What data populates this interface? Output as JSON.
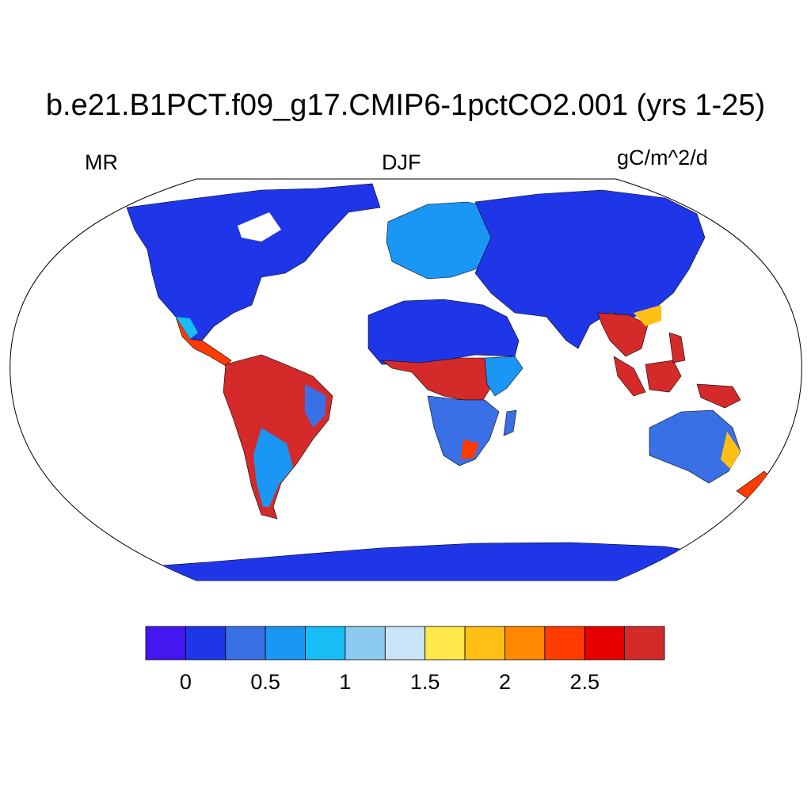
{
  "title": "b.e21.B1PCT.f09_g17.CMIP6-1pctCO2.001 (yrs 1-25)",
  "label_left": "MR",
  "label_center": "DJF",
  "label_right": "gC/m^2/d",
  "colorbar": {
    "colors": [
      "#4416f0",
      "#1f36e8",
      "#3a70e6",
      "#1a96f5",
      "#18bdf5",
      "#8dcaf0",
      "#c9e5f7",
      "#ffe84a",
      "#ffbf14",
      "#ff8800",
      "#ff3b00",
      "#e60000",
      "#d42a2a"
    ],
    "tick_values": [
      0,
      0.5,
      1,
      1.5,
      2,
      2.5
    ],
    "tick_labels": [
      "0",
      "0.5",
      "1",
      "1.5",
      "2",
      "2.5"
    ]
  },
  "colors": {
    "low": "#1f36e8",
    "high": "#d42a2a",
    "ocean": "#ffffff",
    "coast": "#000000"
  }
}
